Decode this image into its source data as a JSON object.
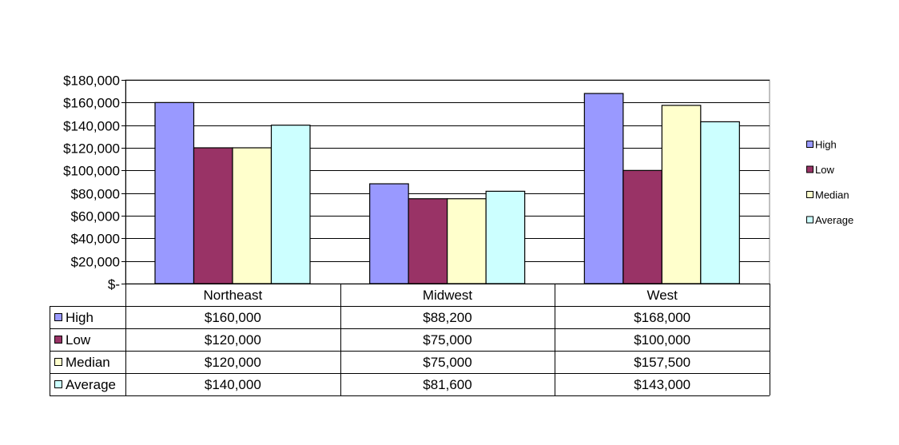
{
  "chart_data": {
    "type": "bar",
    "categories": [
      "Northeast",
      "Midwest",
      "West"
    ],
    "series": [
      {
        "name": "High",
        "color": "#9999ff",
        "values": [
          160000,
          88200,
          168000
        ],
        "labels": [
          "$160,000",
          "$88,200",
          "$168,000"
        ]
      },
      {
        "name": "Low",
        "color": "#993366",
        "values": [
          120000,
          75000,
          100000
        ],
        "labels": [
          "$120,000",
          "$75,000",
          "$100,000"
        ]
      },
      {
        "name": "Median",
        "color": "#ffffcc",
        "values": [
          120000,
          75000,
          157500
        ],
        "labels": [
          "$120,000",
          "$75,000",
          "$157,500"
        ]
      },
      {
        "name": "Average",
        "color": "#ccffff",
        "values": [
          140000,
          81600,
          143000
        ],
        "labels": [
          "$140,000",
          "$81,600",
          "$143,000"
        ]
      }
    ],
    "ylim": [
      0,
      180000
    ],
    "yticks": [
      {
        "value": 0,
        "label": "$-"
      },
      {
        "value": 20000,
        "label": "$20,000"
      },
      {
        "value": 40000,
        "label": "$40,000"
      },
      {
        "value": 60000,
        "label": "$60,000"
      },
      {
        "value": 80000,
        "label": "$80,000"
      },
      {
        "value": 100000,
        "label": "$100,000"
      },
      {
        "value": 120000,
        "label": "$120,000"
      },
      {
        "value": 140000,
        "label": "$140,000"
      },
      {
        "value": 160000,
        "label": "$160,000"
      },
      {
        "value": 180000,
        "label": "$180,000"
      }
    ],
    "grid": true,
    "legend": "right",
    "data_table": true,
    "title": "",
    "xlabel": "",
    "ylabel": ""
  }
}
